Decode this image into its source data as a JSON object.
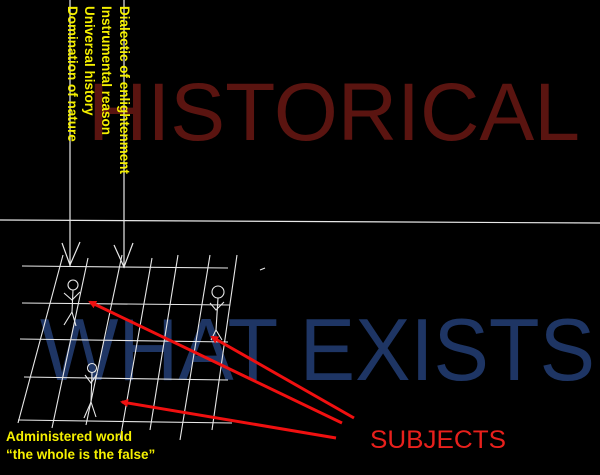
{
  "background_words": {
    "historical": "HISTORICAL",
    "what_exists": "WHAT EXISTS"
  },
  "vertical_labels": [
    "Dialectic of enlightenment",
    "Instrumental reason",
    "Universal history",
    "Domination of nature"
  ],
  "bottom_label": {
    "line1": "Administered world",
    "line2": "“the whole is the false”"
  },
  "subjects_label": "SUBJECTS",
  "colors": {
    "historical": "#5a1410",
    "what_exists": "#1e3564",
    "labels": "#f5f000",
    "subjects": "#e8201c",
    "arrows": "#f01010",
    "lines": "#e8e8e8"
  }
}
